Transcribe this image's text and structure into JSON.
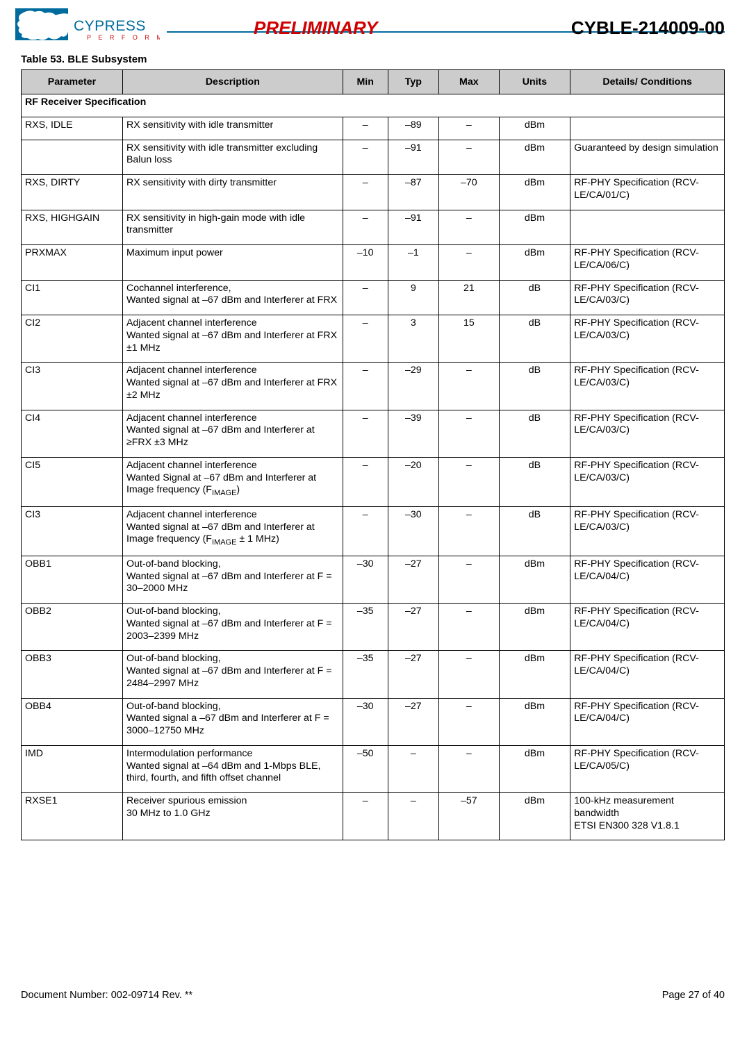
{
  "header": {
    "preliminary": "PRELIMINARY",
    "part_number": "CYBLE-214009-00",
    "logo_text_main": "CYPRESS",
    "logo_text_sub": "P E R F O R M"
  },
  "table": {
    "caption": "Table 53.  BLE Subsystem",
    "columns": {
      "param": "Parameter",
      "desc": "Description",
      "min": "Min",
      "typ": "Typ",
      "max": "Max",
      "units": "Units",
      "details": "Details/\nConditions"
    },
    "section": "RF Receiver Specification",
    "rows": [
      {
        "param": "RXS, IDLE",
        "desc": "RX sensitivity with idle transmitter",
        "min": "–",
        "typ": "–89",
        "max": "–",
        "units": "dBm",
        "details": ""
      },
      {
        "param": "",
        "desc": "RX sensitivity with idle transmitter excluding Balun loss",
        "min": "–",
        "typ": "–91",
        "max": "–",
        "units": "dBm",
        "details": "Guaranteed by design simulation"
      },
      {
        "param": "RXS, DIRTY",
        "desc": "RX sensitivity with dirty transmitter",
        "min": "–",
        "typ": "–87",
        "max": "–70",
        "units": "dBm",
        "details": "RF-PHY Specification (RCV-LE/CA/01/C)"
      },
      {
        "param": "RXS, HIGHGAIN",
        "desc": "RX sensitivity in high-gain mode with idle transmitter",
        "min": "–",
        "typ": "–91",
        "max": "–",
        "units": "dBm",
        "details": ""
      },
      {
        "param": "PRXMAX",
        "desc": "Maximum input power",
        "min": "–10",
        "typ": "–1",
        "max": "–",
        "units": "dBm",
        "details": "RF-PHY Specification (RCV-LE/CA/06/C)"
      },
      {
        "param": "CI1",
        "desc": "Cochannel interference,\nWanted signal at –67 dBm and Interferer at FRX",
        "min": "–",
        "typ": "9",
        "max": "21",
        "units": "dB",
        "details": "RF-PHY Specification (RCV-LE/CA/03/C)"
      },
      {
        "param": "CI2",
        "desc": "Adjacent channel interference\nWanted signal at –67 dBm and Interferer at FRX ±1 MHz",
        "min": "–",
        "typ": "3",
        "max": "15",
        "units": "dB",
        "details": "RF-PHY Specification (RCV-LE/CA/03/C)"
      },
      {
        "param": "CI3",
        "desc": "Adjacent channel interference\nWanted signal at –67 dBm and Interferer at FRX ±2 MHz",
        "min": "–",
        "typ": "–29",
        "max": "–",
        "units": "dB",
        "details": "RF-PHY Specification (RCV-LE/CA/03/C)"
      },
      {
        "param": "CI4",
        "desc": "Adjacent channel interference\nWanted signal at –67 dBm and Interferer at ≥FRX ±3 MHz",
        "min": "–",
        "typ": "–39",
        "max": "–",
        "units": "dB",
        "details": "RF-PHY Specification (RCV-LE/CA/03/C)"
      },
      {
        "param": "CI5",
        "desc": "Adjacent channel interference\nWanted Signal at –67 dBm and Interferer at Image frequency (F",
        "desc_sub": "IMAGE",
        "desc_tail": ")",
        "min": "–",
        "typ": "–20",
        "max": "–",
        "units": "dB",
        "details": "RF-PHY Specification (RCV-LE/CA/03/C)"
      },
      {
        "param": "CI3",
        "desc": "Adjacent channel interference\nWanted signal at –67 dBm and Interferer at Image frequency (F",
        "desc_sub": "IMAGE",
        "desc_tail": " ± 1 MHz)",
        "min": "–",
        "typ": "–30",
        "max": "–",
        "units": "dB",
        "details": "RF-PHY Specification (RCV-LE/CA/03/C)"
      },
      {
        "param": "OBB1",
        "desc": "Out-of-band blocking,\nWanted signal at –67 dBm and Interferer at F = 30–2000 MHz",
        "min": "–30",
        "typ": "–27",
        "max": "–",
        "units": "dBm",
        "details": "RF-PHY Specification (RCV-LE/CA/04/C)"
      },
      {
        "param": "OBB2",
        "desc": "Out-of-band blocking,\nWanted signal at –67 dBm and Interferer at F = 2003–2399 MHz",
        "min": "–35",
        "typ": "–27",
        "max": "–",
        "units": "dBm",
        "details": "RF-PHY Specification (RCV-LE/CA/04/C)"
      },
      {
        "param": "OBB3",
        "desc": "Out-of-band blocking,\nWanted signal at –67 dBm and Interferer at F = 2484–2997 MHz",
        "min": "–35",
        "typ": "–27",
        "max": "–",
        "units": "dBm",
        "details": "RF-PHY Specification (RCV-LE/CA/04/C)"
      },
      {
        "param": "OBB4",
        "desc": "Out-of-band blocking,\nWanted signal a –67 dBm and Interferer at F = 3000–12750 MHz",
        "min": "–30",
        "typ": "–27",
        "max": "–",
        "units": "dBm",
        "details": "RF-PHY Specification (RCV-LE/CA/04/C)"
      },
      {
        "param": "IMD",
        "desc": "Intermodulation performance\nWanted signal at –64 dBm and 1-Mbps BLE, third, fourth, and fifth offset channel",
        "min": "–50",
        "typ": "–",
        "max": "–",
        "units": "dBm",
        "details": "RF-PHY Specification (RCV-LE/CA/05/C)"
      },
      {
        "param": "RXSE1",
        "desc": "Receiver spurious emission\n30 MHz to 1.0 GHz",
        "min": "–",
        "typ": "–",
        "max": "–57",
        "units": "dBm",
        "details": "100-kHz measurement bandwidth\nETSI EN300 328 V1.8.1"
      }
    ]
  },
  "footer": {
    "doc_number": "Document Number: 002-09714 Rev. **",
    "page": "Page 27 of 40"
  }
}
